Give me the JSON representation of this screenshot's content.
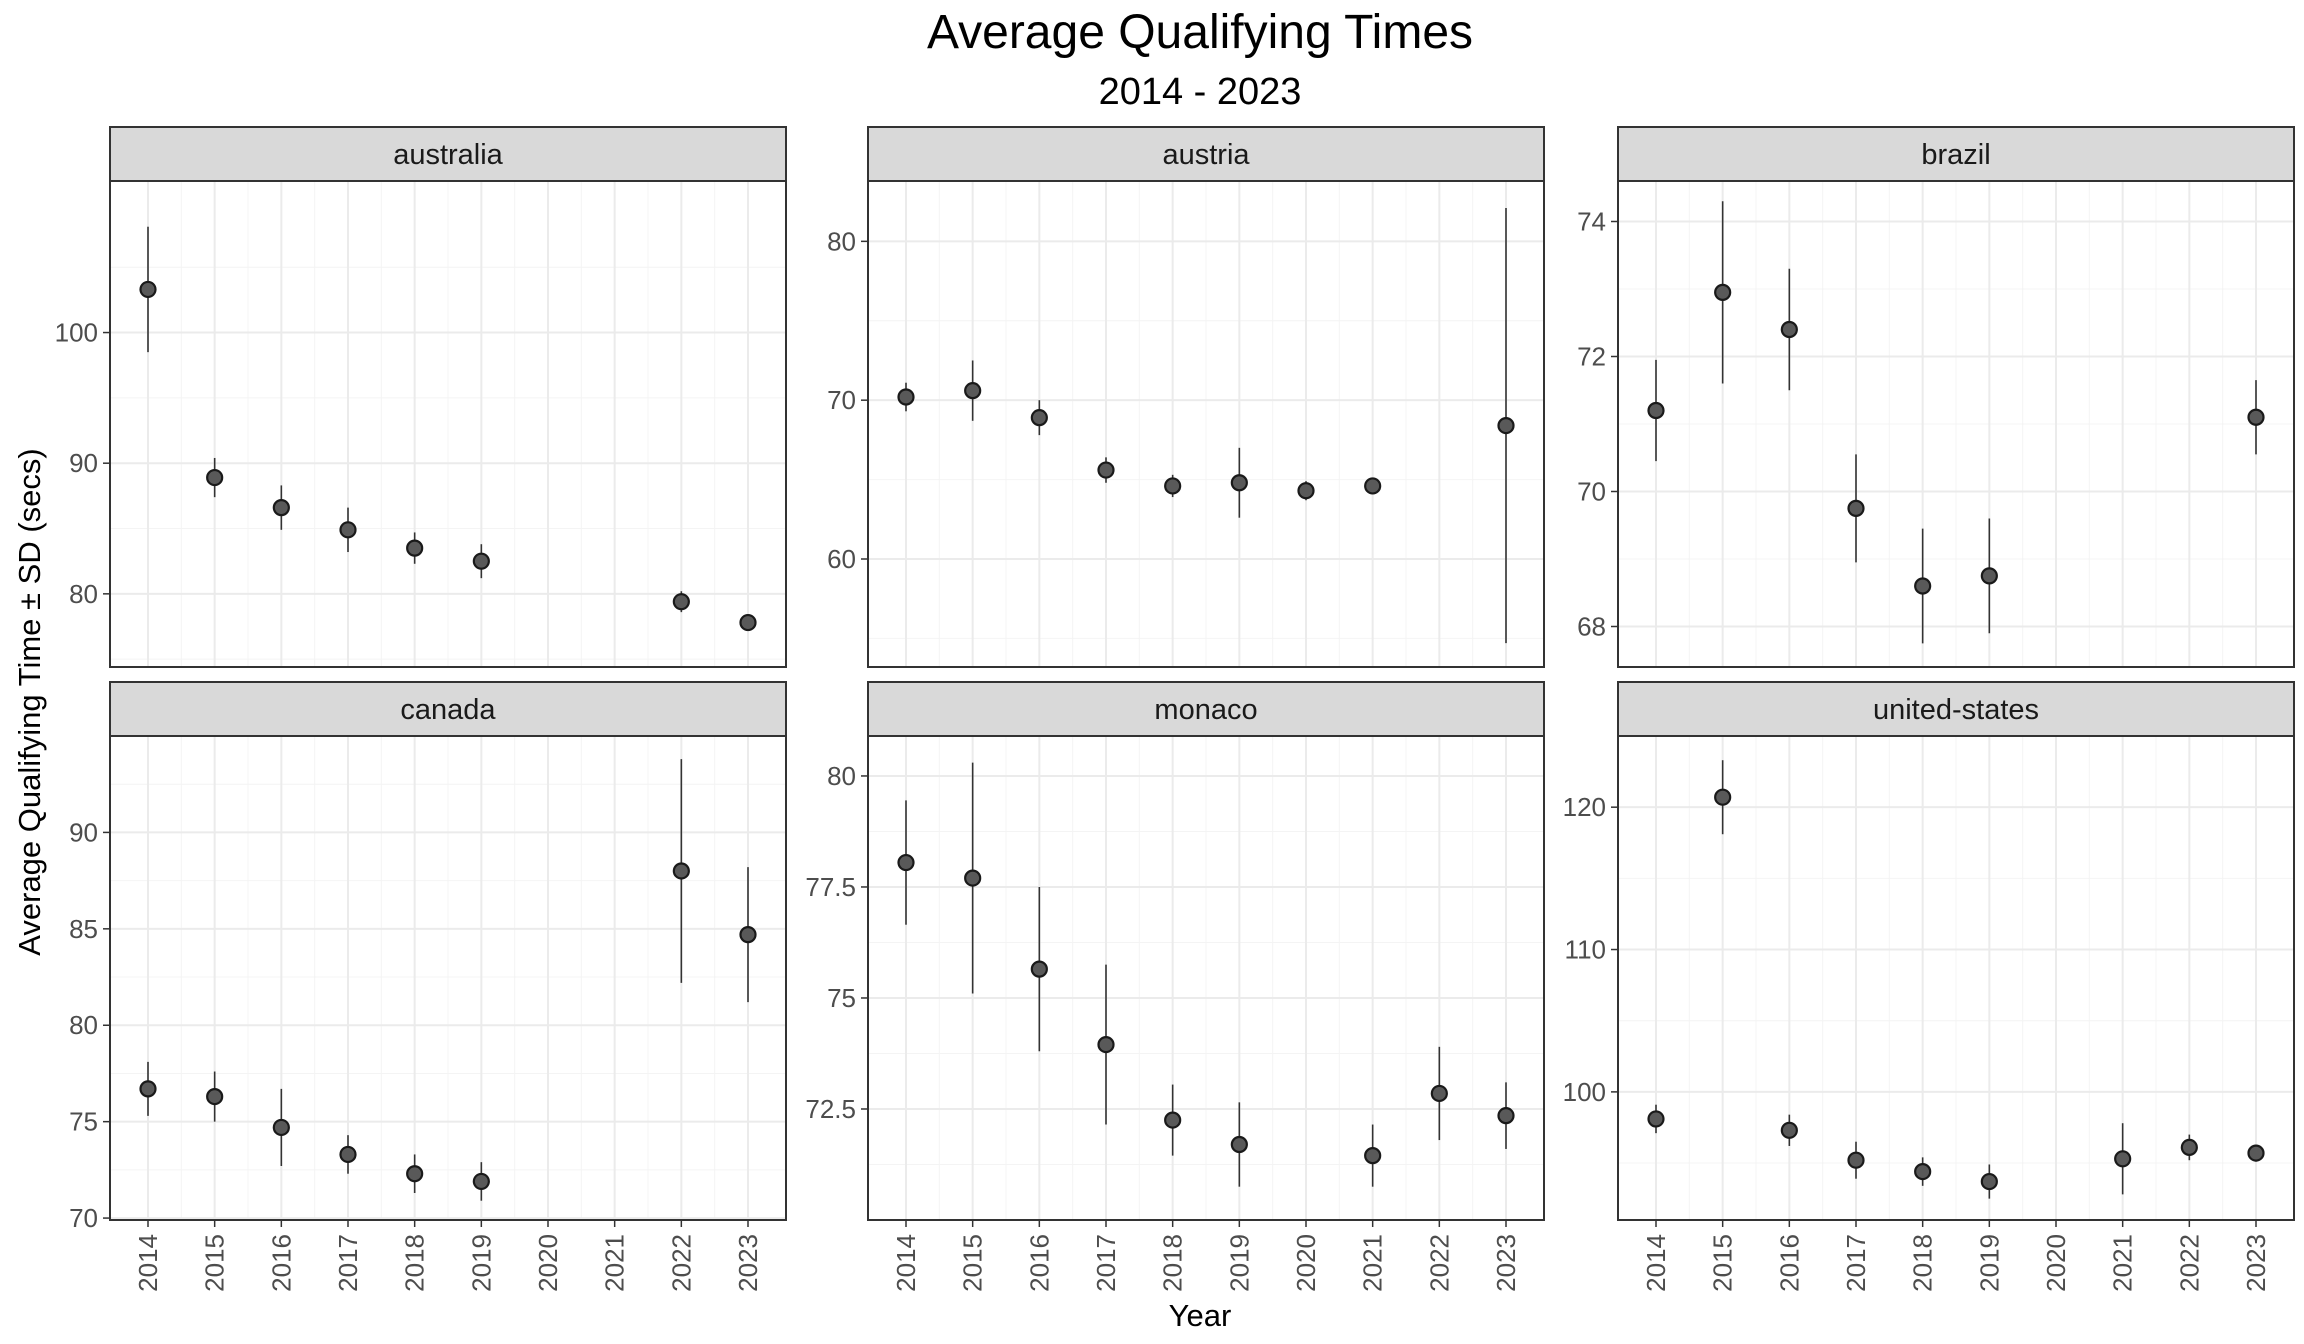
{
  "chart_data": {
    "type": "scatter",
    "title": "Average Qualifying Times",
    "subtitle": "2014 - 2023",
    "xlabel": "Year",
    "ylabel": "Average Qualifying Time ± SD (secs)",
    "x_categories": [
      "2014",
      "2015",
      "2016",
      "2017",
      "2018",
      "2019",
      "2020",
      "2021",
      "2022",
      "2023"
    ],
    "error_bars": "mean ± SD",
    "colors": {
      "point_fill": "#595959",
      "point_stroke": "#1a1a1a",
      "strip_bg": "#d9d9d9",
      "grid": "#ebebeb",
      "panel_border": "#333333"
    },
    "facets": [
      {
        "name": "australia",
        "ylim": [
          74.4,
          111.6
        ],
        "yticks": [
          80,
          90,
          100
        ],
        "yminor": [
          75,
          85,
          95,
          105
        ],
        "points": [
          {
            "year": "2014",
            "mean": 103.3,
            "sd": 4.8
          },
          {
            "year": "2015",
            "mean": 88.9,
            "sd": 1.5
          },
          {
            "year": "2016",
            "mean": 86.6,
            "sd": 1.7
          },
          {
            "year": "2017",
            "mean": 84.9,
            "sd": 1.7
          },
          {
            "year": "2018",
            "mean": 83.5,
            "sd": 1.2
          },
          {
            "year": "2019",
            "mean": 82.5,
            "sd": 1.3
          },
          {
            "year": "2022",
            "mean": 79.4,
            "sd": 0.8
          },
          {
            "year": "2023",
            "mean": 77.8,
            "sd": 0.4
          }
        ]
      },
      {
        "name": "austria",
        "ylim": [
          53.2,
          83.8
        ],
        "yticks": [
          60,
          70,
          80
        ],
        "yminor": [
          55,
          65,
          75
        ],
        "points": [
          {
            "year": "2014",
            "mean": 70.2,
            "sd": 0.9
          },
          {
            "year": "2015",
            "mean": 70.6,
            "sd": 1.9
          },
          {
            "year": "2016",
            "mean": 68.9,
            "sd": 1.1
          },
          {
            "year": "2017",
            "mean": 65.6,
            "sd": 0.8
          },
          {
            "year": "2018",
            "mean": 64.6,
            "sd": 0.7
          },
          {
            "year": "2019",
            "mean": 64.8,
            "sd": 2.2
          },
          {
            "year": "2020",
            "mean": 64.3,
            "sd": 0.6
          },
          {
            "year": "2021",
            "mean": 64.6,
            "sd": 0.4
          },
          {
            "year": "2023",
            "mean": 68.4,
            "sd": 13.7
          }
        ]
      },
      {
        "name": "brazil",
        "ylim": [
          67.4,
          74.6
        ],
        "yticks": [
          68,
          70,
          72,
          74
        ],
        "yminor": [
          69,
          71,
          73
        ],
        "points": [
          {
            "year": "2014",
            "mean": 71.2,
            "sd": 0.75
          },
          {
            "year": "2015",
            "mean": 72.95,
            "sd": 1.35
          },
          {
            "year": "2016",
            "mean": 72.4,
            "sd": 0.9
          },
          {
            "year": "2017",
            "mean": 69.75,
            "sd": 0.8
          },
          {
            "year": "2018",
            "mean": 68.6,
            "sd": 0.85
          },
          {
            "year": "2019",
            "mean": 68.75,
            "sd": 0.85
          },
          {
            "year": "2023",
            "mean": 71.1,
            "sd": 0.55
          }
        ]
      },
      {
        "name": "canada",
        "ylim": [
          69.9,
          95.0
        ],
        "yticks": [
          70,
          75,
          80,
          85,
          90
        ],
        "yminor": [
          72.5,
          77.5,
          82.5,
          87.5,
          92.5
        ],
        "points": [
          {
            "year": "2014",
            "mean": 76.7,
            "sd": 1.4
          },
          {
            "year": "2015",
            "mean": 76.3,
            "sd": 1.3
          },
          {
            "year": "2016",
            "mean": 74.7,
            "sd": 2.0
          },
          {
            "year": "2017",
            "mean": 73.3,
            "sd": 1.0
          },
          {
            "year": "2018",
            "mean": 72.3,
            "sd": 1.0
          },
          {
            "year": "2019",
            "mean": 71.9,
            "sd": 1.0
          },
          {
            "year": "2022",
            "mean": 88.0,
            "sd": 5.8
          },
          {
            "year": "2023",
            "mean": 84.7,
            "sd": 3.5
          }
        ]
      },
      {
        "name": "monaco",
        "ylim": [
          70.0,
          80.9
        ],
        "yticks": [
          72.5,
          75.0,
          77.5,
          80.0
        ],
        "yminor": [
          71.25,
          73.75,
          76.25,
          78.75
        ],
        "points": [
          {
            "year": "2014",
            "mean": 78.05,
            "sd": 1.4
          },
          {
            "year": "2015",
            "mean": 77.7,
            "sd": 2.6
          },
          {
            "year": "2016",
            "mean": 75.65,
            "sd": 1.85
          },
          {
            "year": "2017",
            "mean": 73.95,
            "sd": 1.8
          },
          {
            "year": "2018",
            "mean": 72.25,
            "sd": 0.8
          },
          {
            "year": "2019",
            "mean": 71.7,
            "sd": 0.95
          },
          {
            "year": "2021",
            "mean": 71.45,
            "sd": 0.7
          },
          {
            "year": "2022",
            "mean": 72.85,
            "sd": 1.05
          },
          {
            "year": "2023",
            "mean": 72.35,
            "sd": 0.75
          }
        ]
      },
      {
        "name": "united-states",
        "ylim": [
          91.0,
          125.0
        ],
        "yticks": [
          100,
          110,
          120
        ],
        "yminor": [
          95,
          105,
          115
        ],
        "points": [
          {
            "year": "2014",
            "mean": 98.1,
            "sd": 1.0
          },
          {
            "year": "2015",
            "mean": 120.7,
            "sd": 2.6
          },
          {
            "year": "2016",
            "mean": 97.3,
            "sd": 1.1
          },
          {
            "year": "2017",
            "mean": 95.2,
            "sd": 1.3
          },
          {
            "year": "2018",
            "mean": 94.4,
            "sd": 1.0
          },
          {
            "year": "2019",
            "mean": 93.7,
            "sd": 1.2
          },
          {
            "year": "2021",
            "mean": 95.3,
            "sd": 2.5
          },
          {
            "year": "2022",
            "mean": 96.1,
            "sd": 0.9
          },
          {
            "year": "2023",
            "mean": 95.7,
            "sd": 0.6
          }
        ]
      }
    ]
  }
}
